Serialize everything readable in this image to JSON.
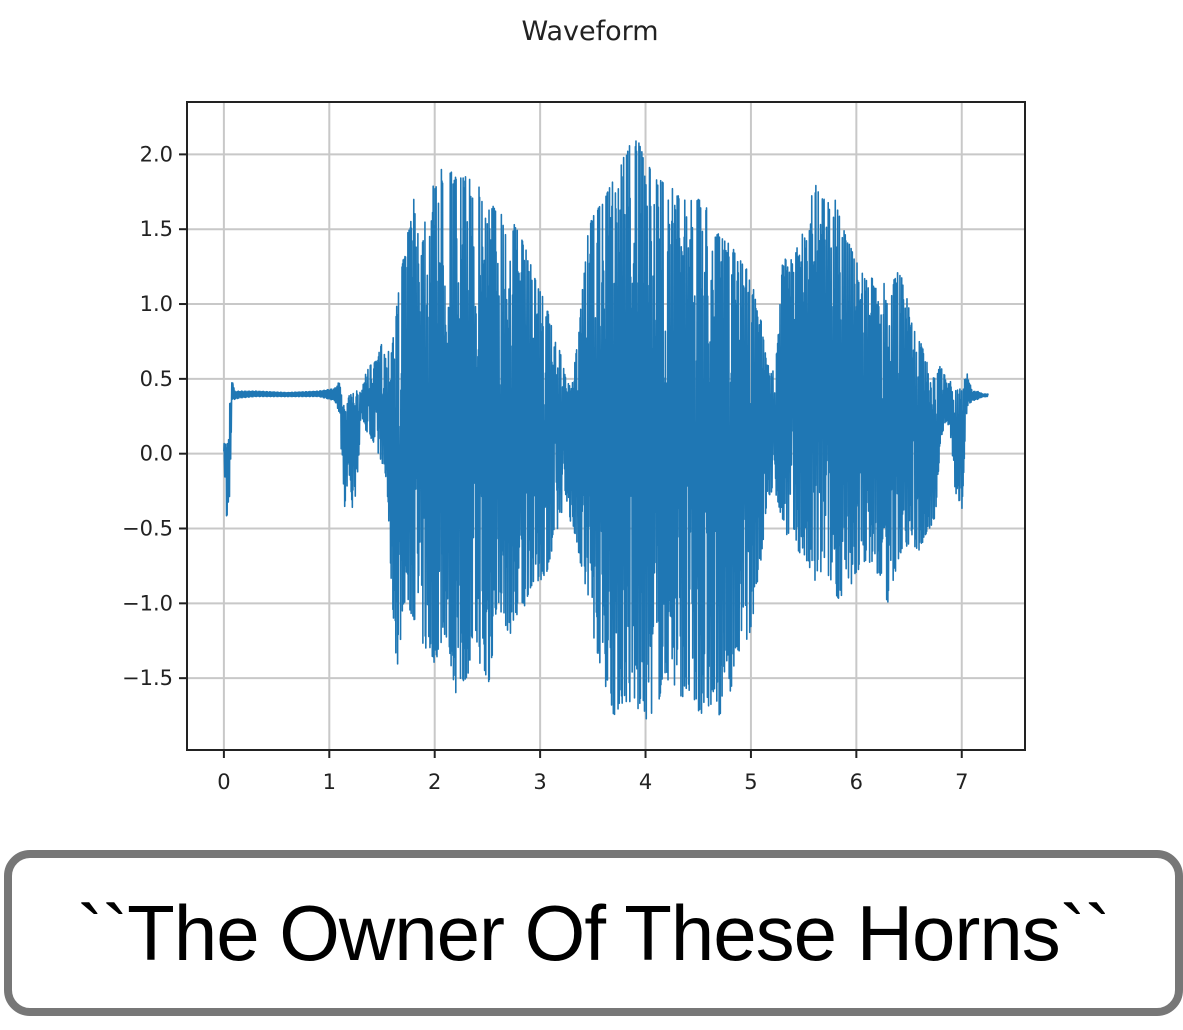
{
  "chart_data": {
    "type": "line",
    "title": "Waveform",
    "xlabel": "",
    "ylabel": "",
    "xlim": [
      -0.35,
      7.6
    ],
    "ylim": [
      -1.98,
      2.35
    ],
    "grid": true,
    "xticks": [
      0,
      1,
      2,
      3,
      4,
      5,
      6,
      7
    ],
    "xtick_labels": [
      "0",
      "1",
      "2",
      "3",
      "4",
      "5",
      "6",
      "7"
    ],
    "yticks": [
      -1.5,
      -1.0,
      -0.5,
      0.0,
      0.5,
      1.0,
      1.5,
      2.0
    ],
    "ytick_labels": [
      "−1.5",
      "−1.0",
      "−0.5",
      "0.0",
      "0.5",
      "1.0",
      "1.5",
      "2.0"
    ],
    "series": [
      {
        "color": "#1f77b4",
        "envelope_x": [
          0,
          0.03,
          0.05,
          0.08,
          0.1,
          0.15,
          0.3,
          0.6,
          0.9,
          1.05,
          1.1,
          1.12,
          1.15,
          1.18,
          1.22,
          1.25,
          1.3,
          1.35,
          1.4,
          1.45,
          1.5,
          1.55,
          1.6,
          1.65,
          1.7,
          1.8,
          1.9,
          2.0,
          2.1,
          2.2,
          2.3,
          2.4,
          2.5,
          2.6,
          2.7,
          2.8,
          2.9,
          3.0,
          3.1,
          3.2,
          3.25,
          3.3,
          3.35,
          3.4,
          3.45,
          3.5,
          3.6,
          3.7,
          3.8,
          3.9,
          4.0,
          4.1,
          4.2,
          4.3,
          4.4,
          4.5,
          4.6,
          4.7,
          4.8,
          4.9,
          5.0,
          5.05,
          5.1,
          5.15,
          5.2,
          5.25,
          5.3,
          5.4,
          5.5,
          5.6,
          5.7,
          5.8,
          5.9,
          6.0,
          6.1,
          6.2,
          6.3,
          6.4,
          6.5,
          6.6,
          6.65,
          6.7,
          6.75,
          6.8,
          6.85,
          6.9,
          6.95,
          7.0,
          7.05,
          7.1,
          7.15,
          7.2,
          7.25
        ],
        "envelope_max": [
          0.08,
          0.05,
          0.35,
          0.52,
          0.42,
          0.42,
          0.42,
          0.41,
          0.42,
          0.44,
          0.5,
          0.45,
          0.3,
          0.38,
          0.42,
          0.45,
          0.42,
          0.55,
          0.6,
          0.62,
          0.75,
          0.62,
          1.0,
          1.05,
          1.3,
          1.7,
          1.6,
          1.82,
          1.95,
          1.85,
          1.85,
          1.8,
          1.72,
          1.62,
          1.6,
          1.48,
          1.3,
          1.1,
          0.9,
          0.65,
          0.48,
          0.45,
          0.72,
          1.1,
          1.45,
          1.6,
          1.68,
          1.85,
          2.0,
          2.15,
          1.95,
          1.85,
          1.8,
          1.75,
          1.7,
          1.7,
          1.65,
          1.45,
          1.4,
          1.3,
          1.2,
          1.0,
          0.88,
          0.62,
          0.52,
          0.75,
          1.3,
          1.3,
          1.5,
          1.85,
          1.7,
          1.7,
          1.45,
          1.3,
          1.15,
          1.2,
          1.1,
          1.25,
          1.0,
          0.78,
          0.65,
          0.55,
          0.5,
          0.6,
          0.5,
          0.48,
          0.42,
          0.45,
          0.55,
          0.42,
          0.42,
          0.4,
          0.4
        ],
        "envelope_min": [
          -0.05,
          -0.5,
          -0.38,
          0.35,
          0.36,
          0.37,
          0.38,
          0.38,
          0.38,
          0.35,
          0.25,
          -0.1,
          -0.4,
          -0.1,
          -0.42,
          -0.4,
          0.25,
          0.15,
          0.1,
          0.0,
          -0.05,
          -0.3,
          -1.05,
          -1.5,
          -1.0,
          -1.1,
          -1.3,
          -1.4,
          -1.2,
          -1.6,
          -1.5,
          -1.3,
          -1.65,
          -1.0,
          -1.2,
          -1.2,
          -0.9,
          -0.85,
          -0.75,
          -0.4,
          -0.3,
          -0.5,
          -0.6,
          -0.8,
          -1.1,
          -1.2,
          -1.5,
          -1.75,
          -1.65,
          -1.7,
          -1.78,
          -1.7,
          -1.5,
          -1.6,
          -1.65,
          -1.75,
          -1.7,
          -1.75,
          -1.6,
          -1.3,
          -1.2,
          -0.9,
          -0.7,
          -0.35,
          -0.25,
          -0.3,
          -0.5,
          -0.6,
          -0.7,
          -0.9,
          -0.75,
          -0.95,
          -1.0,
          -0.8,
          -0.7,
          -0.8,
          -1.0,
          -0.7,
          -0.6,
          -0.65,
          -0.55,
          -0.5,
          -0.42,
          0.1,
          0.2,
          0.1,
          -0.38,
          -0.4,
          0.3,
          0.35,
          0.36,
          0.38,
          0.38
        ]
      }
    ]
  },
  "caption": {
    "text": "``The Owner Of These Horns``"
  }
}
